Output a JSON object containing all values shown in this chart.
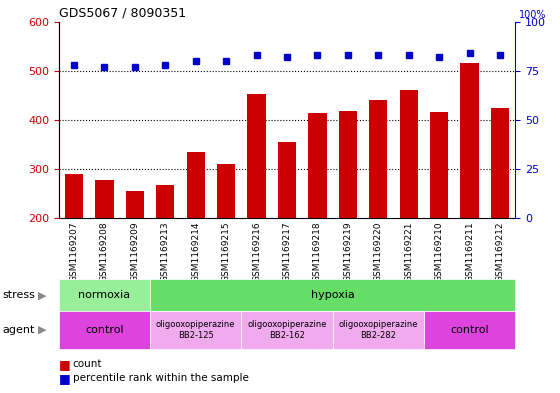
{
  "title": "GDS5067 / 8090351",
  "samples": [
    "GSM1169207",
    "GSM1169208",
    "GSM1169209",
    "GSM1169213",
    "GSM1169214",
    "GSM1169215",
    "GSM1169216",
    "GSM1169217",
    "GSM1169218",
    "GSM1169219",
    "GSM1169220",
    "GSM1169221",
    "GSM1169210",
    "GSM1169211",
    "GSM1169212"
  ],
  "counts": [
    290,
    278,
    255,
    268,
    335,
    310,
    452,
    354,
    413,
    418,
    440,
    460,
    415,
    516,
    425
  ],
  "percentiles": [
    78,
    77,
    77,
    78,
    80,
    80,
    83,
    82,
    83,
    83,
    83,
    83,
    82,
    84,
    83
  ],
  "bar_color": "#cc0000",
  "dot_color": "#0000cc",
  "ylim_left": [
    200,
    600
  ],
  "ylim_right": [
    0,
    100
  ],
  "yticks_left": [
    200,
    300,
    400,
    500,
    600
  ],
  "yticks_right": [
    0,
    25,
    50,
    75,
    100
  ],
  "grid_lines": [
    300,
    400,
    500
  ],
  "stress_groups": [
    {
      "label": "normoxia",
      "start": 0,
      "end": 3,
      "color": "#99ee99"
    },
    {
      "label": "hypoxia",
      "start": 3,
      "end": 15,
      "color": "#66dd66"
    }
  ],
  "agent_groups": [
    {
      "label": "control",
      "start": 0,
      "end": 3,
      "color": "#dd44dd",
      "text_size": "large"
    },
    {
      "label": "oligooxopiperazine\nBB2-125",
      "start": 3,
      "end": 6,
      "color": "#f0aaee",
      "text_size": "small"
    },
    {
      "label": "oligooxopiperazine\nBB2-162",
      "start": 6,
      "end": 9,
      "color": "#f0aaee",
      "text_size": "small"
    },
    {
      "label": "oligooxopiperazine\nBB2-282",
      "start": 9,
      "end": 12,
      "color": "#f0aaee",
      "text_size": "small"
    },
    {
      "label": "control",
      "start": 12,
      "end": 15,
      "color": "#dd44dd",
      "text_size": "large"
    }
  ],
  "ylabel_left_color": "#cc0000",
  "ylabel_right_color": "#0000cc",
  "background_color": "#ffffff",
  "tick_bg_color": "#cccccc"
}
